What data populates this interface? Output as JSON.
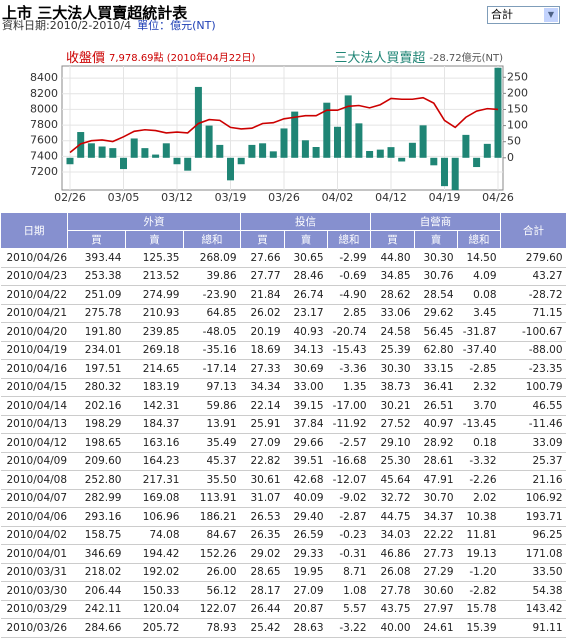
{
  "header": {
    "title": "上市 三大法人買賣超統計表",
    "date_range": "資料日期:2010/2-2010/4",
    "unit": "單位：億元(NT)",
    "select": "合計"
  },
  "chart_data": {
    "type": "combo",
    "categories": [
      "02/26",
      null,
      null,
      null,
      null,
      "03/05",
      null,
      null,
      null,
      null,
      "03/12",
      null,
      null,
      null,
      null,
      "03/19",
      null,
      null,
      null,
      null,
      "03/26",
      null,
      null,
      null,
      null,
      "04/02",
      null,
      null,
      null,
      null,
      "04/12",
      null,
      null,
      null,
      null,
      "04/19",
      null,
      null,
      null,
      null,
      "04/26"
    ],
    "series": [
      {
        "name": "收盤價",
        "type": "line",
        "readout": "7,978.69點 (2010年04月22日)",
        "color": "#cc0000",
        "values": [
          7450,
          7560,
          7600,
          7610,
          7590,
          7650,
          7720,
          7740,
          7730,
          7700,
          7710,
          7700,
          7820,
          7870,
          7860,
          7770,
          7750,
          7760,
          7820,
          7830,
          7880,
          7900,
          7920,
          7920,
          7990,
          7990,
          8040,
          8050,
          8020,
          8060,
          8140,
          8130,
          8130,
          8150,
          8080,
          7860,
          7770,
          7900,
          7978.69,
          8010,
          8000
        ]
      },
      {
        "name": "三大法人買賣超",
        "type": "bar",
        "axis": "y2",
        "readout": "-28.72億元(NT)",
        "color": "#1f8575",
        "values": [
          -20,
          80,
          45,
          35,
          30,
          -35,
          60,
          30,
          10,
          45,
          -20,
          -40,
          220,
          100,
          40,
          -70,
          -20,
          40,
          45,
          20,
          91.11,
          143.42,
          54.38,
          33.5,
          171.08,
          96.25,
          193.71,
          106.92,
          21.16,
          25.37,
          33.09,
          -11.46,
          46.55,
          100.79,
          -23.35,
          -88,
          -100.67,
          71.15,
          -28.72,
          43.27,
          279.6
        ]
      }
    ],
    "ylim": [
      6970,
      8555
    ],
    "yticks": [
      7200,
      7400,
      7600,
      7800,
      8000,
      8200,
      8400
    ],
    "y2lim": [
      -100,
      285
    ],
    "y2ticks": [
      0,
      50,
      100,
      150,
      200,
      250
    ],
    "grid": true
  },
  "table": {
    "date": "日期",
    "groups": [
      "外資",
      "投信",
      "自營商"
    ],
    "total": "合計",
    "sub": [
      "買",
      "賣",
      "總和"
    ],
    "rows": [
      [
        "2010/04/26",
        "393.44",
        "125.35",
        "268.09",
        "27.66",
        "30.65",
        "-2.99",
        "44.80",
        "30.30",
        "14.50",
        "279.60"
      ],
      [
        "2010/04/23",
        "253.38",
        "213.52",
        "39.86",
        "27.77",
        "28.46",
        "-0.69",
        "34.85",
        "30.76",
        "4.09",
        "43.27"
      ],
      [
        "2010/04/22",
        "251.09",
        "274.99",
        "-23.90",
        "21.84",
        "26.74",
        "-4.90",
        "28.62",
        "28.54",
        "0.08",
        "-28.72"
      ],
      [
        "2010/04/21",
        "275.78",
        "210.93",
        "64.85",
        "26.02",
        "23.17",
        "2.85",
        "33.06",
        "29.62",
        "3.45",
        "71.15"
      ],
      [
        "2010/04/20",
        "191.80",
        "239.85",
        "-48.05",
        "20.19",
        "40.93",
        "-20.74",
        "24.58",
        "56.45",
        "-31.87",
        "-100.67"
      ],
      [
        "2010/04/19",
        "234.01",
        "269.18",
        "-35.16",
        "18.69",
        "34.13",
        "-15.43",
        "25.39",
        "62.80",
        "-37.40",
        "-88.00"
      ],
      [
        "2010/04/16",
        "197.51",
        "214.65",
        "-17.14",
        "27.33",
        "30.69",
        "-3.36",
        "30.30",
        "33.15",
        "-2.85",
        "-23.35"
      ],
      [
        "2010/04/15",
        "280.32",
        "183.19",
        "97.13",
        "34.34",
        "33.00",
        "1.35",
        "38.73",
        "36.41",
        "2.32",
        "100.79"
      ],
      [
        "2010/04/14",
        "202.16",
        "142.31",
        "59.86",
        "22.14",
        "39.15",
        "-17.00",
        "30.21",
        "26.51",
        "3.70",
        "46.55"
      ],
      [
        "2010/04/13",
        "198.29",
        "184.37",
        "13.91",
        "25.91",
        "37.84",
        "-11.92",
        "27.52",
        "40.97",
        "-13.45",
        "-11.46"
      ],
      [
        "2010/04/12",
        "198.65",
        "163.16",
        "35.49",
        "27.09",
        "29.66",
        "-2.57",
        "29.10",
        "28.92",
        "0.18",
        "33.09"
      ],
      [
        "2010/04/09",
        "209.60",
        "164.23",
        "45.37",
        "22.82",
        "39.51",
        "-16.68",
        "25.30",
        "28.61",
        "-3.32",
        "25.37"
      ],
      [
        "2010/04/08",
        "252.80",
        "217.31",
        "35.50",
        "30.61",
        "42.68",
        "-12.07",
        "45.64",
        "47.91",
        "-2.26",
        "21.16"
      ],
      [
        "2010/04/07",
        "282.99",
        "169.08",
        "113.91",
        "31.07",
        "40.09",
        "-9.02",
        "32.72",
        "30.70",
        "2.02",
        "106.92"
      ],
      [
        "2010/04/06",
        "293.16",
        "106.96",
        "186.21",
        "26.53",
        "29.40",
        "-2.87",
        "44.75",
        "34.37",
        "10.38",
        "193.71"
      ],
      [
        "2010/04/02",
        "158.75",
        "74.08",
        "84.67",
        "26.35",
        "26.59",
        "-0.23",
        "34.03",
        "22.22",
        "11.81",
        "96.25"
      ],
      [
        "2010/04/01",
        "346.69",
        "194.42",
        "152.26",
        "29.02",
        "29.33",
        "-0.31",
        "46.86",
        "27.73",
        "19.13",
        "171.08"
      ],
      [
        "2010/03/31",
        "218.02",
        "192.02",
        "26.00",
        "28.65",
        "19.95",
        "8.71",
        "26.08",
        "27.29",
        "-1.20",
        "33.50"
      ],
      [
        "2010/03/30",
        "206.44",
        "150.33",
        "56.12",
        "28.17",
        "27.09",
        "1.08",
        "27.78",
        "30.60",
        "-2.82",
        "54.38"
      ],
      [
        "2010/03/29",
        "242.11",
        "120.04",
        "122.07",
        "26.44",
        "20.87",
        "5.57",
        "43.75",
        "27.97",
        "15.78",
        "143.42"
      ],
      [
        "2010/03/26",
        "284.66",
        "205.72",
        "78.93",
        "25.42",
        "28.63",
        "-3.22",
        "40.00",
        "24.61",
        "15.39",
        "91.11"
      ]
    ]
  }
}
